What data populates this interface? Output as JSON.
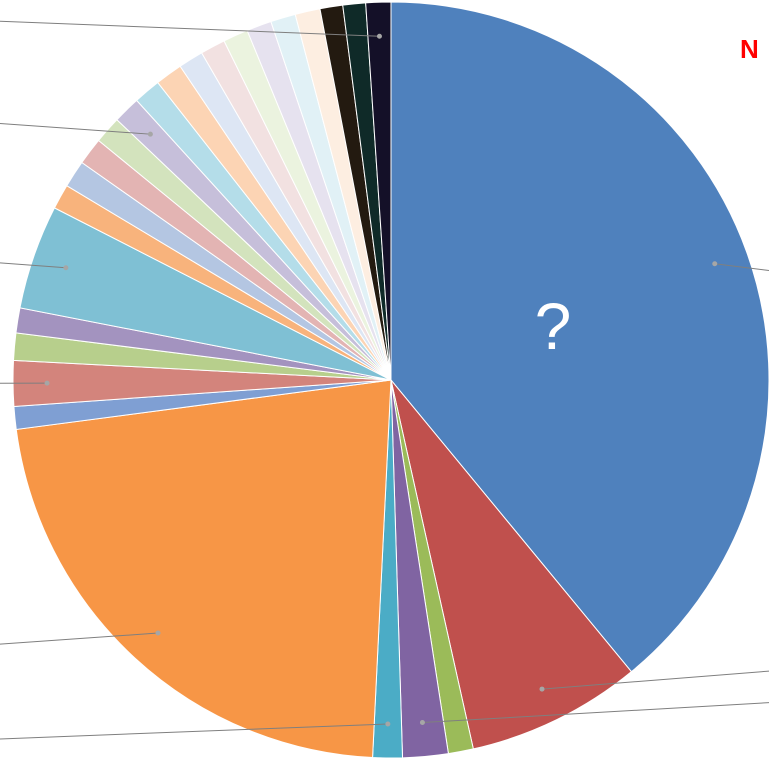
{
  "chart_data": {
    "type": "pie",
    "title": "",
    "center_label": "?",
    "corner_label": "N",
    "slices": [
      {
        "value": 40.2,
        "color": "#4f81bd"
      },
      {
        "value": 7.7,
        "color": "#c0504d"
      },
      {
        "value": 1.1,
        "color": "#9bbb59"
      },
      {
        "value": 2.0,
        "color": "#8064a2"
      },
      {
        "value": 1.3,
        "color": "#4bacc6"
      },
      {
        "value": 22.8,
        "color": "#f79646"
      },
      {
        "value": 1.0,
        "color": "#7f9fd3"
      },
      {
        "value": 2.0,
        "color": "#d3847c"
      },
      {
        "value": 1.2,
        "color": "#b7cf8c"
      },
      {
        "value": 1.1,
        "color": "#a393bf"
      },
      {
        "value": 4.6,
        "color": "#7fc0d4"
      },
      {
        "value": 1.1,
        "color": "#f8b37c"
      },
      {
        "value": 1.2,
        "color": "#b4c6e2"
      },
      {
        "value": 1.2,
        "color": "#e3b4b3"
      },
      {
        "value": 1.2,
        "color": "#d3e3bd"
      },
      {
        "value": 1.2,
        "color": "#c6bfda"
      },
      {
        "value": 1.2,
        "color": "#b4dde9"
      },
      {
        "value": 1.2,
        "color": "#fcd4b4"
      },
      {
        "value": 1.1,
        "color": "#dde6f4"
      },
      {
        "value": 1.1,
        "color": "#f2e1e1"
      },
      {
        "value": 1.1,
        "color": "#ebf3df"
      },
      {
        "value": 1.1,
        "color": "#e6e2ef"
      },
      {
        "value": 1.1,
        "color": "#e1f1f6"
      },
      {
        "value": 1.1,
        "color": "#fdeee1"
      },
      {
        "value": 1.0,
        "color": "#231a10"
      },
      {
        "value": 1.0,
        "color": "#0f2a28"
      },
      {
        "value": 1.1,
        "color": "#141028"
      }
    ],
    "leader_lines": [
      {
        "slice": 0,
        "to": "right"
      },
      {
        "slice": 1,
        "to": "right"
      },
      {
        "slice": 3,
        "to": "right"
      },
      {
        "slice": 4,
        "to": "left"
      },
      {
        "slice": 5,
        "to": "left"
      },
      {
        "slice": 7,
        "to": "left"
      },
      {
        "slice": 10,
        "to": "left"
      },
      {
        "slice": 15,
        "to": "left"
      },
      {
        "slice": 26,
        "to": "left"
      }
    ]
  }
}
